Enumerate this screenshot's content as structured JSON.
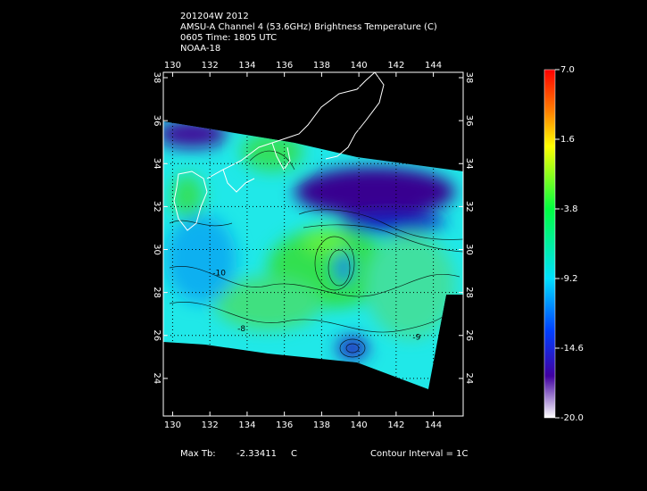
{
  "chart_data": {
    "type": "map",
    "title_lines": [
      "201204W 2012",
      "AMSU-A Channel 4 (53.6GHz) Brightness Temperature (C)",
      "0605 Time: 1805 UTC",
      "NOAA-18"
    ],
    "xlim": [
      129.5,
      145.6
    ],
    "xticks": [
      130,
      132,
      134,
      136,
      138,
      140,
      142,
      144
    ],
    "ylim": [
      22.25,
      38.25
    ],
    "yticks": [
      24,
      26,
      28,
      30,
      32,
      34,
      36,
      38
    ],
    "colorbar": {
      "lim": [
        -20,
        7
      ],
      "ticks": [
        {
          "value": 7,
          "label": "7.0"
        },
        1.6,
        -3.8,
        -9.2,
        -14.6,
        {
          "value": -20,
          "label": "-20.0"
        }
      ]
    },
    "contour_labels": [
      {
        "value": -10,
        "lon": 132.5,
        "lat": 28.9
      },
      {
        "value": -9,
        "lon": 143.1,
        "lat": 25.9
      },
      {
        "value": -8,
        "lon": 133.7,
        "lat": 26.3
      }
    ],
    "footer": {
      "max_label": "Max Tb:",
      "max_value": -2.33411,
      "max_unit": "C",
      "contour_interval": "Contour Interval = 1C"
    }
  }
}
